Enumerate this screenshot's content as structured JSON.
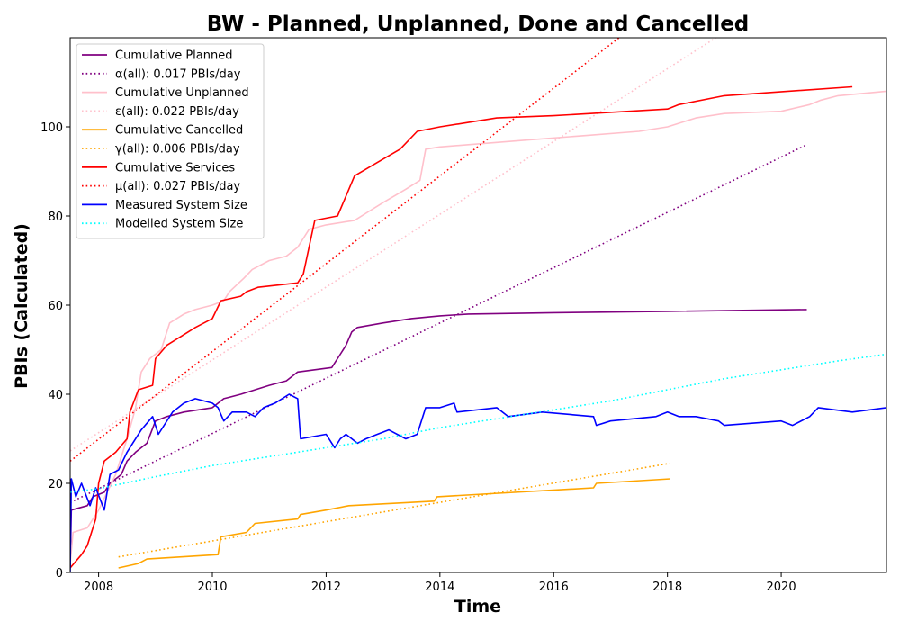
{
  "chart_data": {
    "type": "line",
    "title": "BW - Planned, Unplanned, Done  and Cancelled",
    "xlabel": "Time",
    "ylabel": "PBIs (Calculated)",
    "xlim": [
      2007.5,
      2021.85
    ],
    "ylim": [
      0,
      120
    ],
    "x_ticks": [
      2008,
      2010,
      2012,
      2014,
      2016,
      2018,
      2020
    ],
    "y_ticks": [
      0,
      20,
      40,
      60,
      80,
      100
    ],
    "grid": false,
    "legend_position": "top-left",
    "series": [
      {
        "name": "Cumulative Planned",
        "color": "#800080",
        "style": "solid",
        "points": [
          [
            2007.5,
            1
          ],
          [
            2007.52,
            14
          ],
          [
            2007.8,
            15
          ],
          [
            2007.9,
            17
          ],
          [
            2008.1,
            18
          ],
          [
            2008.2,
            20
          ],
          [
            2008.4,
            22
          ],
          [
            2008.5,
            25
          ],
          [
            2008.65,
            27
          ],
          [
            2008.85,
            29
          ],
          [
            2009.0,
            34
          ],
          [
            2009.2,
            35
          ],
          [
            2009.5,
            36
          ],
          [
            2010.0,
            37
          ],
          [
            2010.2,
            39
          ],
          [
            2010.5,
            40
          ],
          [
            2011.0,
            42
          ],
          [
            2011.3,
            43
          ],
          [
            2011.5,
            45
          ],
          [
            2012.1,
            46
          ],
          [
            2012.25,
            49
          ],
          [
            2012.35,
            51
          ],
          [
            2012.45,
            54
          ],
          [
            2012.55,
            55
          ],
          [
            2013.0,
            56
          ],
          [
            2013.5,
            57
          ],
          [
            2014.0,
            57.6
          ],
          [
            2014.5,
            58
          ],
          [
            2016.0,
            58.3
          ],
          [
            2018.0,
            58.6
          ],
          [
            2020.45,
            59
          ]
        ]
      },
      {
        "name": "α(all): 0.017 PBIs/day",
        "color": "#800080",
        "style": "dotted",
        "points": [
          [
            2007.5,
            15.7
          ],
          [
            2020.45,
            96
          ]
        ]
      },
      {
        "name": "Cumulative Unplanned",
        "color": "#ffc0cb",
        "style": "solid",
        "points": [
          [
            2007.5,
            2
          ],
          [
            2007.55,
            9
          ],
          [
            2007.8,
            10
          ],
          [
            2008.0,
            14
          ],
          [
            2008.3,
            22
          ],
          [
            2008.5,
            30
          ],
          [
            2008.65,
            37
          ],
          [
            2008.75,
            45
          ],
          [
            2008.9,
            48
          ],
          [
            2009.1,
            50
          ],
          [
            2009.25,
            56
          ],
          [
            2009.5,
            58
          ],
          [
            2009.7,
            59
          ],
          [
            2010.0,
            60
          ],
          [
            2010.2,
            61
          ],
          [
            2010.3,
            63
          ],
          [
            2010.55,
            66
          ],
          [
            2010.7,
            68
          ],
          [
            2011.0,
            70
          ],
          [
            2011.3,
            71
          ],
          [
            2011.5,
            73
          ],
          [
            2011.7,
            77
          ],
          [
            2012.0,
            78
          ],
          [
            2012.5,
            79
          ],
          [
            2012.75,
            81
          ],
          [
            2013.0,
            83
          ],
          [
            2013.4,
            86
          ],
          [
            2013.65,
            88
          ],
          [
            2013.75,
            95
          ],
          [
            2014.0,
            95.5
          ],
          [
            2014.5,
            96
          ],
          [
            2015.5,
            97
          ],
          [
            2016.5,
            98
          ],
          [
            2017.5,
            99
          ],
          [
            2018.0,
            100
          ],
          [
            2018.5,
            102
          ],
          [
            2019.0,
            103
          ],
          [
            2020.0,
            103.5
          ],
          [
            2020.5,
            105
          ],
          [
            2020.7,
            106
          ],
          [
            2021.0,
            107
          ],
          [
            2021.85,
            108
          ]
        ]
      },
      {
        "name": "ε(all): 0.022 PBIs/day",
        "color": "#ffc0cb",
        "style": "dotted",
        "points": [
          [
            2007.5,
            27.3
          ],
          [
            2018.85,
            120
          ]
        ]
      },
      {
        "name": "Cumulative Cancelled",
        "color": "#ffa500",
        "style": "solid",
        "points": [
          [
            2008.35,
            1
          ],
          [
            2008.7,
            2
          ],
          [
            2008.85,
            3
          ],
          [
            2010.1,
            4
          ],
          [
            2010.15,
            8
          ],
          [
            2010.6,
            9
          ],
          [
            2010.75,
            11
          ],
          [
            2011.5,
            12
          ],
          [
            2011.55,
            13
          ],
          [
            2012.0,
            14
          ],
          [
            2012.4,
            15
          ],
          [
            2013.9,
            16
          ],
          [
            2013.95,
            17
          ],
          [
            2016.7,
            19
          ],
          [
            2016.75,
            20
          ],
          [
            2018.05,
            21
          ]
        ]
      },
      {
        "name": "γ(all): 0.006 PBIs/day",
        "color": "#ffa500",
        "style": "dotted",
        "points": [
          [
            2008.35,
            3.5
          ],
          [
            2018.05,
            24.5
          ]
        ]
      },
      {
        "name": "Cumulative Services",
        "color": "#ff0000",
        "style": "solid",
        "points": [
          [
            2007.5,
            1
          ],
          [
            2007.7,
            4
          ],
          [
            2007.8,
            6
          ],
          [
            2007.95,
            12
          ],
          [
            2008.0,
            20
          ],
          [
            2008.1,
            25
          ],
          [
            2008.3,
            27
          ],
          [
            2008.5,
            30
          ],
          [
            2008.55,
            36
          ],
          [
            2008.7,
            41
          ],
          [
            2008.95,
            42
          ],
          [
            2009.0,
            48
          ],
          [
            2009.2,
            51
          ],
          [
            2009.45,
            53
          ],
          [
            2009.7,
            55
          ],
          [
            2010.0,
            57
          ],
          [
            2010.15,
            61
          ],
          [
            2010.5,
            62
          ],
          [
            2010.6,
            63
          ],
          [
            2010.8,
            64
          ],
          [
            2011.5,
            65
          ],
          [
            2011.6,
            67
          ],
          [
            2011.8,
            79
          ],
          [
            2012.2,
            80
          ],
          [
            2012.3,
            83
          ],
          [
            2012.5,
            89
          ],
          [
            2012.9,
            92
          ],
          [
            2013.3,
            95
          ],
          [
            2013.6,
            99
          ],
          [
            2014.0,
            100
          ],
          [
            2014.5,
            101
          ],
          [
            2015.0,
            102
          ],
          [
            2016.0,
            102.5
          ],
          [
            2018.0,
            104
          ],
          [
            2018.2,
            105
          ],
          [
            2019.0,
            107
          ],
          [
            2021.25,
            109
          ]
        ]
      },
      {
        "name": "μ(all): 0.027 PBIs/day",
        "color": "#ff0000",
        "style": "dotted",
        "points": [
          [
            2007.5,
            25
          ],
          [
            2017.15,
            120
          ]
        ]
      },
      {
        "name": "Measured System Size",
        "color": "#0000ff",
        "style": "solid",
        "points": [
          [
            2007.5,
            0
          ],
          [
            2007.52,
            21
          ],
          [
            2007.6,
            17
          ],
          [
            2007.7,
            20
          ],
          [
            2007.85,
            15
          ],
          [
            2007.95,
            19
          ],
          [
            2008.1,
            14
          ],
          [
            2008.2,
            22
          ],
          [
            2008.35,
            23
          ],
          [
            2008.5,
            27
          ],
          [
            2008.6,
            29
          ],
          [
            2008.75,
            32
          ],
          [
            2008.95,
            35
          ],
          [
            2009.05,
            31
          ],
          [
            2009.3,
            36
          ],
          [
            2009.5,
            38
          ],
          [
            2009.7,
            39
          ],
          [
            2010.0,
            38
          ],
          [
            2010.1,
            37
          ],
          [
            2010.2,
            34
          ],
          [
            2010.35,
            36
          ],
          [
            2010.6,
            36
          ],
          [
            2010.75,
            35
          ],
          [
            2010.9,
            37
          ],
          [
            2011.1,
            38
          ],
          [
            2011.35,
            40
          ],
          [
            2011.5,
            39
          ],
          [
            2011.55,
            30
          ],
          [
            2012.0,
            31
          ],
          [
            2012.15,
            28
          ],
          [
            2012.25,
            30
          ],
          [
            2012.35,
            31
          ],
          [
            2012.55,
            29
          ],
          [
            2012.7,
            30
          ],
          [
            2012.9,
            31
          ],
          [
            2013.1,
            32
          ],
          [
            2013.4,
            30
          ],
          [
            2013.6,
            31
          ],
          [
            2013.75,
            37
          ],
          [
            2014.0,
            37
          ],
          [
            2014.25,
            38
          ],
          [
            2014.3,
            36
          ],
          [
            2015.0,
            37
          ],
          [
            2015.2,
            35
          ],
          [
            2015.8,
            36
          ],
          [
            2016.7,
            35
          ],
          [
            2016.75,
            33
          ],
          [
            2017.0,
            34
          ],
          [
            2017.8,
            35
          ],
          [
            2018.0,
            36
          ],
          [
            2018.2,
            35
          ],
          [
            2018.5,
            35
          ],
          [
            2018.9,
            34
          ],
          [
            2019.0,
            33
          ],
          [
            2020.0,
            34
          ],
          [
            2020.2,
            33
          ],
          [
            2020.5,
            35
          ],
          [
            2020.65,
            37
          ],
          [
            2021.25,
            36
          ],
          [
            2021.85,
            37
          ]
        ]
      },
      {
        "name": "Modelled System Size",
        "color": "#00ffff",
        "style": "dotted",
        "points": [
          [
            2007.5,
            18
          ],
          [
            2008.0,
            18.8
          ],
          [
            2009.0,
            21.5
          ],
          [
            2010.0,
            24
          ],
          [
            2011.0,
            26
          ],
          [
            2012.0,
            28
          ],
          [
            2013.0,
            30
          ],
          [
            2014.0,
            32.5
          ],
          [
            2015.0,
            34.5
          ],
          [
            2016.0,
            36.5
          ],
          [
            2017.0,
            38.5
          ],
          [
            2018.0,
            41
          ],
          [
            2019.0,
            43.5
          ],
          [
            2020.0,
            45.5
          ],
          [
            2021.0,
            47.5
          ],
          [
            2021.85,
            49
          ]
        ]
      }
    ]
  }
}
